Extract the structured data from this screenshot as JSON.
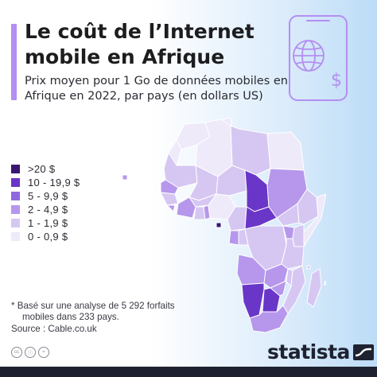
{
  "header": {
    "title": "Le coût de l’Internet mobile en Afrique",
    "subtitle": "Prix moyen pour 1 Go de données mobiles en Afrique en 2022, par pays (en dollars US)"
  },
  "legend": {
    "items": [
      {
        "label": ">20 $",
        "color": "#3a1670"
      },
      {
        "label": "10 - 19,9 $",
        "color": "#6a36c8"
      },
      {
        "label": "5 - 9,9 $",
        "color": "#8f68e0"
      },
      {
        "label": "2 - 4,9 $",
        "color": "#b697ec"
      },
      {
        "label": "1 - 1,9 $",
        "color": "#d6c7f2"
      },
      {
        "label": "0 - 0,9 $",
        "color": "#eeeafa"
      }
    ]
  },
  "footnote": {
    "line1": "* Basé sur une analyse de 5 292 forfaits",
    "line2": "mobiles dans 233 pays.",
    "source": "Source : Cable.co.uk"
  },
  "brand": {
    "name": "statista",
    "license_icons": [
      "cc-icon",
      "by-icon",
      "nd-icon"
    ]
  },
  "colors": {
    "accent": "#b48ef2",
    "dark": "#1e2230",
    "ocean": "#bcdcf7",
    "border": "#ffffff"
  },
  "chart_data": {
    "type": "map",
    "categories": [
      ">20 $",
      "10 - 19,9 $",
      "5 - 9,9 $",
      "2 - 4,9 $",
      "1 - 1,9 $",
      "0 - 0,9 $"
    ]
  }
}
